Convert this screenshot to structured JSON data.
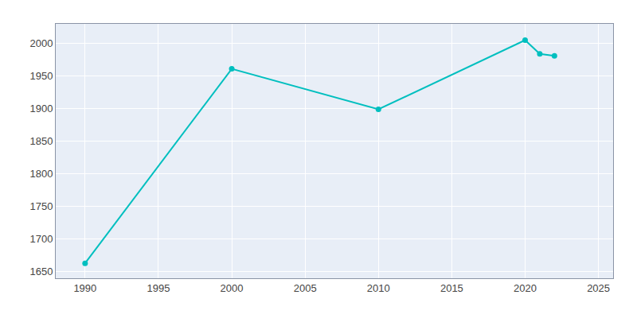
{
  "chart_data": {
    "type": "line",
    "x": [
      1990,
      2000,
      2010,
      2020,
      2021,
      2022
    ],
    "values": [
      1663,
      1961,
      1899,
      2005,
      1984,
      1981
    ],
    "color": "#00BFBF",
    "marker": "circle",
    "xlim": [
      1988,
      2026
    ],
    "ylim": [
      1640,
      2030
    ],
    "xticks": [
      1990,
      1995,
      2000,
      2005,
      2010,
      2015,
      2020,
      2025
    ],
    "yticks": [
      1650,
      1700,
      1750,
      1800,
      1850,
      1900,
      1950,
      2000
    ],
    "grid": true
  }
}
